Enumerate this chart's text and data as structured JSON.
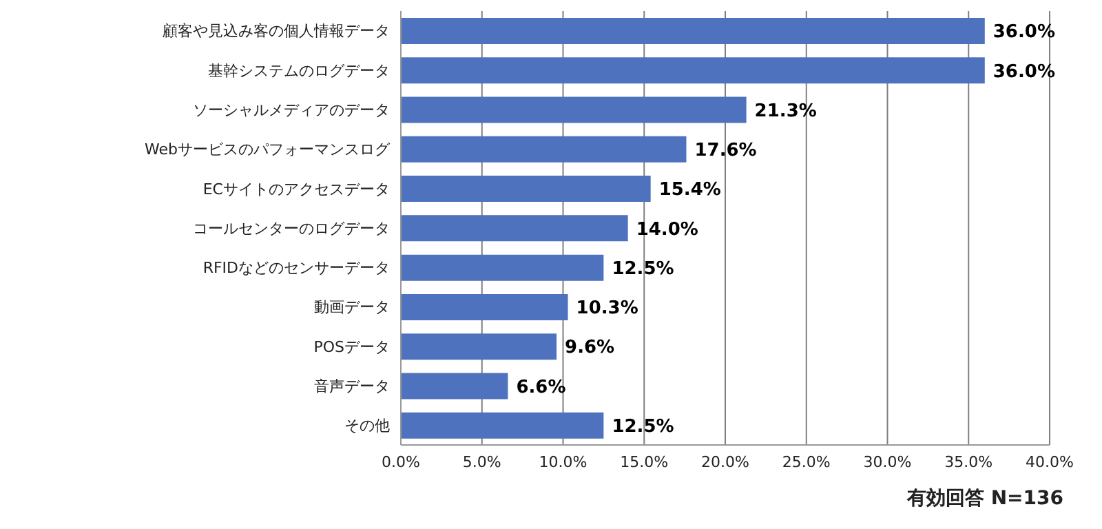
{
  "chart_data": {
    "type": "bar",
    "orientation": "horizontal",
    "categories": [
      "顧客や見込み客の個人情報データ",
      "基幹システムのログデータ",
      "ソーシャルメディアのデータ",
      "Webサービスのパフォーマンスログ",
      "ECサイトのアクセスデータ",
      "コールセンターのログデータ",
      "RFIDなどのセンサーデータ",
      "動画データ",
      "POSデータ",
      "音声データ",
      "その他"
    ],
    "values": [
      36.0,
      36.0,
      21.3,
      17.6,
      15.4,
      14.0,
      12.5,
      10.3,
      9.6,
      6.6,
      12.5
    ],
    "value_labels": [
      "36.0%",
      "36.0%",
      "21.3%",
      "17.6%",
      "15.4%",
      "14.0%",
      "12.5%",
      "10.3%",
      "9.6%",
      "6.6%",
      "12.5%"
    ],
    "color": "#4f72be",
    "xlim": [
      0,
      40
    ],
    "xticks": [
      {
        "value": 0,
        "label": "0.0%"
      },
      {
        "value": 5,
        "label": "5.0%"
      },
      {
        "value": 10,
        "label": "10.0%"
      },
      {
        "value": 15,
        "label": "15.0%"
      },
      {
        "value": 20,
        "label": "20.0%"
      },
      {
        "value": 25,
        "label": "25.0%"
      },
      {
        "value": 30,
        "label": "30.0%"
      },
      {
        "value": 35,
        "label": "35.0%"
      },
      {
        "value": 40,
        "label": "40.0%"
      }
    ],
    "grid": "x",
    "annotations": [
      "有効回答 N=136"
    ]
  }
}
